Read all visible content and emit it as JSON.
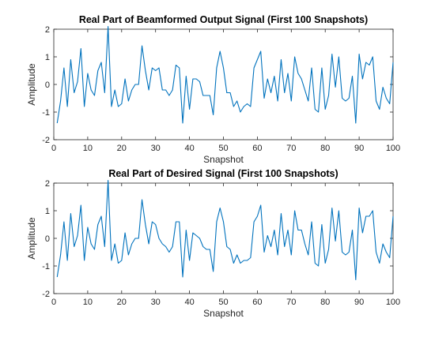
{
  "chart_data": [
    {
      "type": "line",
      "title": "Real Part of Beamformed Output Signal (First 100 Snapshots)",
      "xlabel": "Snapshot",
      "ylabel": "Amplitude",
      "xlim": [
        0,
        100
      ],
      "ylim": [
        -2,
        2
      ],
      "xticks": [
        0,
        10,
        20,
        30,
        40,
        50,
        60,
        70,
        80,
        90,
        100
      ],
      "yticks": [
        -2,
        -1,
        0,
        1,
        2
      ],
      "grid": false,
      "series": [
        {
          "color": "#0072BD",
          "x": [
            1,
            2,
            3,
            4,
            5,
            6,
            7,
            8,
            9,
            10,
            11,
            12,
            13,
            14,
            15,
            16,
            17,
            18,
            19,
            20,
            21,
            22,
            23,
            24,
            25,
            26,
            27,
            28,
            29,
            30,
            31,
            32,
            33,
            34,
            35,
            36,
            37,
            38,
            39,
            40,
            41,
            42,
            43,
            44,
            45,
            46,
            47,
            48,
            49,
            50,
            51,
            52,
            53,
            54,
            55,
            56,
            57,
            58,
            59,
            60,
            61,
            62,
            63,
            64,
            65,
            66,
            67,
            68,
            69,
            70,
            71,
            72,
            73,
            74,
            75,
            76,
            77,
            78,
            79,
            80,
            81,
            82,
            83,
            84,
            85,
            86,
            87,
            88,
            89,
            90,
            91,
            92,
            93,
            94,
            95,
            96,
            97,
            98,
            99,
            100
          ],
          "values": [
            -1.4,
            -0.6,
            0.6,
            -0.8,
            0.9,
            -0.3,
            0.1,
            1.3,
            -0.8,
            0.4,
            -0.2,
            -0.4,
            0.5,
            0.8,
            -0.3,
            2.1,
            -0.8,
            -0.2,
            -0.8,
            -0.7,
            0.2,
            -0.6,
            -0.2,
            0.0,
            0.0,
            1.4,
            0.5,
            -0.2,
            0.6,
            0.5,
            0.6,
            -0.2,
            -0.2,
            -0.4,
            -0.2,
            0.7,
            0.6,
            -1.4,
            0.3,
            -0.9,
            0.2,
            0.2,
            0.1,
            -0.4,
            -0.4,
            -0.4,
            -1.1,
            0.6,
            1.2,
            0.6,
            -0.3,
            -0.3,
            -0.8,
            -0.6,
            -1.0,
            -0.8,
            -0.7,
            -0.8,
            0.6,
            0.9,
            1.2,
            -0.5,
            0.2,
            -0.3,
            0.3,
            -0.6,
            0.9,
            -0.3,
            0.4,
            -0.6,
            1.0,
            0.4,
            0.2,
            -0.2,
            -0.6,
            0.6,
            -0.9,
            -1.0,
            0.6,
            -0.9,
            -0.4,
            1.1,
            -0.1,
            1.0,
            -0.5,
            -0.6,
            -0.5,
            0.3,
            -1.4,
            1.1,
            0.2,
            0.8,
            0.7,
            1.0,
            -0.6,
            -0.9,
            -0.1,
            -0.5,
            -0.7,
            0.8
          ]
        }
      ]
    },
    {
      "type": "line",
      "title": "Real Part of Desired Signal (First 100 Snapshots)",
      "xlabel": "Snapshot",
      "ylabel": "Amplitude",
      "xlim": [
        0,
        100
      ],
      "ylim": [
        -2,
        2
      ],
      "xticks": [
        0,
        10,
        20,
        30,
        40,
        50,
        60,
        70,
        80,
        90,
        100
      ],
      "yticks": [
        -2,
        -1,
        0,
        1,
        2
      ],
      "grid": false,
      "series": [
        {
          "color": "#0072BD",
          "x": [
            1,
            2,
            3,
            4,
            5,
            6,
            7,
            8,
            9,
            10,
            11,
            12,
            13,
            14,
            15,
            16,
            17,
            18,
            19,
            20,
            21,
            22,
            23,
            24,
            25,
            26,
            27,
            28,
            29,
            30,
            31,
            32,
            33,
            34,
            35,
            36,
            37,
            38,
            39,
            40,
            41,
            42,
            43,
            44,
            45,
            46,
            47,
            48,
            49,
            50,
            51,
            52,
            53,
            54,
            55,
            56,
            57,
            58,
            59,
            60,
            61,
            62,
            63,
            64,
            65,
            66,
            67,
            68,
            69,
            70,
            71,
            72,
            73,
            74,
            75,
            76,
            77,
            78,
            79,
            80,
            81,
            82,
            83,
            84,
            85,
            86,
            87,
            88,
            89,
            90,
            91,
            92,
            93,
            94,
            95,
            96,
            97,
            98,
            99,
            100
          ],
          "values": [
            -1.4,
            -0.6,
            0.6,
            -0.8,
            0.9,
            -0.3,
            0.1,
            1.2,
            -0.8,
            0.4,
            -0.2,
            -0.4,
            0.5,
            0.8,
            -0.3,
            2.1,
            -0.8,
            -0.2,
            -0.9,
            -0.8,
            0.2,
            -0.6,
            -0.2,
            0.0,
            0.0,
            1.4,
            0.5,
            -0.2,
            0.6,
            0.5,
            0.0,
            -0.2,
            -0.3,
            -0.5,
            -0.3,
            0.6,
            0.6,
            -1.4,
            0.3,
            -0.8,
            0.2,
            0.1,
            0.0,
            -0.3,
            -0.4,
            -0.4,
            -1.2,
            0.6,
            1.1,
            0.6,
            -0.3,
            -0.4,
            -0.9,
            -0.6,
            -0.9,
            -0.8,
            -0.8,
            -0.7,
            0.6,
            0.8,
            1.2,
            -0.5,
            0.1,
            -0.3,
            0.3,
            -0.6,
            0.9,
            -0.3,
            0.3,
            -0.6,
            1.0,
            0.3,
            0.3,
            -0.2,
            -0.6,
            0.6,
            -0.9,
            -1.0,
            0.5,
            -0.9,
            -0.4,
            1.1,
            -0.1,
            1.0,
            -0.5,
            -0.6,
            -0.5,
            0.3,
            -1.5,
            1.1,
            0.2,
            0.8,
            0.8,
            1.0,
            -0.5,
            -0.9,
            -0.2,
            -0.5,
            -0.7,
            0.8
          ]
        }
      ]
    }
  ]
}
